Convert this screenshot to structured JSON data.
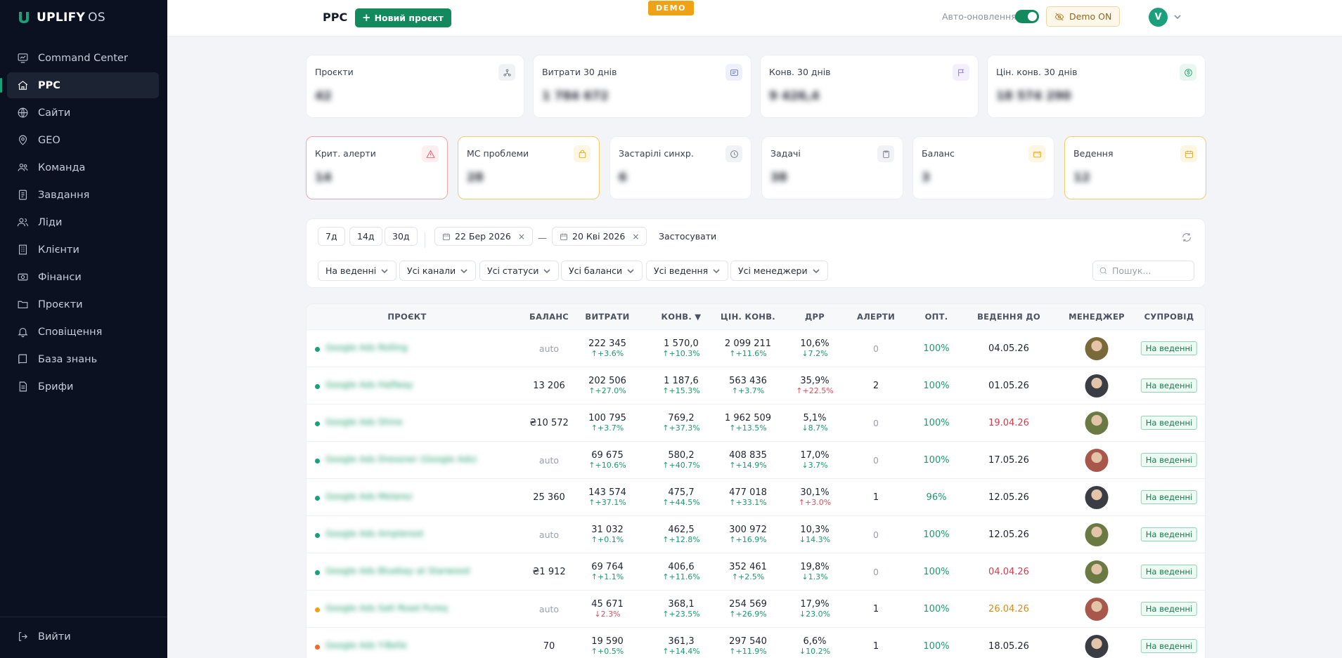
{
  "app": {
    "brand": "UPLIFY",
    "brand_suffix": "OS"
  },
  "sidebar": {
    "items": [
      {
        "label": "Command Center",
        "icon": "monitor-chart-icon",
        "active": false
      },
      {
        "label": "PPC",
        "icon": "home-icon",
        "active": true
      },
      {
        "label": "Сайти",
        "icon": "globe-icon",
        "active": false
      },
      {
        "label": "GEO",
        "icon": "map-pin-icon",
        "active": false
      },
      {
        "label": "Команда",
        "icon": "team-icon",
        "active": false
      },
      {
        "label": "Завдання",
        "icon": "tasks-icon",
        "active": false
      },
      {
        "label": "Ліди",
        "icon": "users-icon",
        "active": false
      },
      {
        "label": "Клієнти",
        "icon": "building-icon",
        "active": false
      },
      {
        "label": "Фінанси",
        "icon": "money-icon",
        "active": false
      },
      {
        "label": "Проєкти",
        "icon": "folder-icon",
        "active": false
      },
      {
        "label": "Сповіщення",
        "icon": "bell-icon",
        "active": false
      },
      {
        "label": "База знань",
        "icon": "book-icon",
        "active": false
      },
      {
        "label": "Брифи",
        "icon": "document-icon",
        "active": false
      }
    ],
    "logout_label": "Вийти"
  },
  "topbar": {
    "title": "PPC",
    "new_project_label": "Новий проєкт",
    "demo_badge": "DEMO",
    "auto_update_label": "Авто-оновлення",
    "auto_update_on": true,
    "demo_toggle_label": "Demo ON",
    "user_initial": "V"
  },
  "stats_top": [
    {
      "label": "Проєкти",
      "value": "42",
      "icon": "network-icon",
      "color": "#6b7280",
      "bg": "#f1f2f5"
    },
    {
      "label": "Витрати 30 днів",
      "value": "1 784 672",
      "icon": "receipt-icon",
      "color": "#4f6bd8",
      "bg": "#eef1fb"
    },
    {
      "label": "Конв. 30 днів",
      "value": "9 426,4",
      "icon": "flag-icon",
      "color": "#8b5cf6",
      "bg": "#f3effd"
    },
    {
      "label": "Цін. конв. 30 днів",
      "value": "18 574 290",
      "icon": "dollar-icon",
      "color": "#1a9b6c",
      "bg": "#e8f7f0"
    }
  ],
  "stats_bottom": [
    {
      "label": "Крит. алерти",
      "value": "14",
      "icon": "alert-triangle-icon",
      "color": "#e0505c",
      "bg": "#fdeeef",
      "variant": "red"
    },
    {
      "label": "МС проблеми",
      "value": "28",
      "icon": "bag-icon",
      "color": "#d9a21b",
      "bg": "#fdf6e3",
      "variant": "amber"
    },
    {
      "label": "Застарілі синхр.",
      "value": "6",
      "icon": "clock-icon",
      "color": "#6b7280",
      "bg": "#f1f2f5",
      "variant": ""
    },
    {
      "label": "Задачі",
      "value": "38",
      "icon": "clipboard-icon",
      "color": "#6b7280",
      "bg": "#f1f2f5",
      "variant": ""
    },
    {
      "label": "Баланс",
      "value": "3",
      "icon": "wallet-icon",
      "color": "#d9a21b",
      "bg": "#fdf6e3",
      "variant": ""
    },
    {
      "label": "Ведення",
      "value": "12",
      "icon": "calendar-icon",
      "color": "#d9a21b",
      "bg": "#fdf6e3",
      "variant": "amber"
    }
  ],
  "filters": {
    "periods": [
      "7д",
      "14д",
      "30д"
    ],
    "date_from": "22 Бер 2026",
    "date_to": "20 Кві 2026",
    "date_separator": "—",
    "apply_label": "Застосувати",
    "dropdowns": [
      "На веденні",
      "Усі канали",
      "Усі статуси",
      "Усі баланси",
      "Усі ведення",
      "Усі менеджери"
    ],
    "search_placeholder": "Пошук..."
  },
  "table": {
    "columns": [
      "ПРОЄКТ",
      "БАЛАНС",
      "ВИТРАТИ",
      "КОНВ. ▼",
      "ЦІН. КОНВ.",
      "ДРР",
      "АЛЕРТИ",
      "ОПТ.",
      "ВЕДЕННЯ ДО",
      "МЕНЕДЖЕР",
      "СУПРОВІД"
    ],
    "rows": [
      {
        "status_color": "#1aa07a",
        "project": "Google Ads Rolling",
        "balance": "auto",
        "spend": "222 345",
        "spend_delta": "↑+3.6%",
        "conv": "1 570,0",
        "conv_delta": "↑+10.3%",
        "value": "2 099 211",
        "value_delta": "↑+11.6%",
        "drr": "10,6%",
        "drr_delta": "↓7.2%",
        "drr_bad": false,
        "alerts": "0",
        "opt": "100%",
        "until": "04.05.26",
        "until_state": "normal",
        "manager_color": "#7a6a3a",
        "support": "На веденні"
      },
      {
        "status_color": "#1aa07a",
        "project": "Google Ads Halfway",
        "balance": "13 206",
        "spend": "202 506",
        "spend_delta": "↑+27.0%",
        "conv": "1 187,6",
        "conv_delta": "↑+15.3%",
        "value": "563 436",
        "value_delta": "↑+3.7%",
        "drr": "35,9%",
        "drr_delta": "↑+22.5%",
        "drr_bad": true,
        "alerts": "2",
        "opt": "100%",
        "until": "01.05.26",
        "until_state": "normal",
        "manager_color": "#3a3d44",
        "support": "На веденні"
      },
      {
        "status_color": "#1aa07a",
        "project": "Google Ads Shine",
        "balance": "₴10 572",
        "spend": "100 795",
        "spend_delta": "↑+3.7%",
        "conv": "769,2",
        "conv_delta": "↑+37.3%",
        "value": "1 962 509",
        "value_delta": "↑+13.5%",
        "drr": "5,1%",
        "drr_delta": "↓8.7%",
        "drr_bad": false,
        "alerts": "0",
        "opt": "100%",
        "until": "19.04.26",
        "until_state": "red",
        "manager_color": "#6b7a42",
        "support": "На веденні"
      },
      {
        "status_color": "#1aa07a",
        "project": "Google Ads Dressner (Google Ads)",
        "balance": "auto",
        "spend": "69 675",
        "spend_delta": "↑+10.6%",
        "conv": "580,2",
        "conv_delta": "↑+40.7%",
        "value": "408 835",
        "value_delta": "↑+14.9%",
        "drr": "17,0%",
        "drr_delta": "↓3.7%",
        "drr_bad": false,
        "alerts": "0",
        "opt": "100%",
        "until": "17.05.26",
        "until_state": "normal",
        "manager_color": "#a8584a",
        "support": "На веденні"
      },
      {
        "status_color": "#1aa07a",
        "project": "Google Ads Melarez",
        "balance": "25 360",
        "spend": "143 574",
        "spend_delta": "↑+37.1%",
        "conv": "475,7",
        "conv_delta": "↑+44.5%",
        "value": "477 018",
        "value_delta": "↑+33.1%",
        "drr": "30,1%",
        "drr_delta": "↑+3.0%",
        "drr_bad": true,
        "alerts": "1",
        "opt": "96%",
        "until": "12.05.26",
        "until_state": "normal",
        "manager_color": "#3a3d44",
        "support": "На веденні"
      },
      {
        "status_color": "#1aa07a",
        "project": "Google Ads Ampleroot",
        "balance": "auto",
        "spend": "31 032",
        "spend_delta": "↑+0.1%",
        "conv": "462,5",
        "conv_delta": "↑+12.8%",
        "value": "300 972",
        "value_delta": "↑+16.9%",
        "drr": "10,3%",
        "drr_delta": "↓14.3%",
        "drr_bad": false,
        "alerts": "0",
        "opt": "100%",
        "until": "12.05.26",
        "until_state": "normal",
        "manager_color": "#6b7a42",
        "support": "На веденні"
      },
      {
        "status_color": "#1aa07a",
        "project": "Google Ads Bluebay at Starwood",
        "balance": "₴1 912",
        "spend": "69 764",
        "spend_delta": "↑+1.1%",
        "conv": "406,6",
        "conv_delta": "↑+11.6%",
        "value": "352 461",
        "value_delta": "↑+2.5%",
        "drr": "19,8%",
        "drr_delta": "↓1.3%",
        "drr_bad": false,
        "alerts": "0",
        "opt": "100%",
        "until": "04.04.26",
        "until_state": "red",
        "manager_color": "#6b7a42",
        "support": "На веденні"
      },
      {
        "status_color": "#e8a317",
        "project": "Google Ads Salt Road Pureq",
        "balance": "auto",
        "spend": "45 671",
        "spend_delta": "↓2.3%",
        "spend_bad": true,
        "conv": "368,1",
        "conv_delta": "↑+23.5%",
        "value": "254 569",
        "value_delta": "↑+26.9%",
        "drr": "17,9%",
        "drr_delta": "↓23.0%",
        "drr_bad": false,
        "alerts": "1",
        "opt": "100%",
        "until": "26.04.26",
        "until_state": "amber",
        "manager_color": "#a8584a",
        "support": "На веденні"
      },
      {
        "status_color": "#ee6a2c",
        "project": "Google Ads Y-Belle",
        "balance": "70",
        "spend": "19 590",
        "spend_delta": "↑+0.5%",
        "conv": "361,3",
        "conv_delta": "↑+14.4%",
        "value": "297 540",
        "value_delta": "↑+11.9%",
        "drr": "6,6%",
        "drr_delta": "↓10.2%",
        "drr_bad": false,
        "alerts": "1",
        "opt": "100%",
        "until": "18.05.26",
        "until_state": "normal",
        "manager_color": "#3a3d44",
        "support": "На веденні"
      }
    ]
  }
}
